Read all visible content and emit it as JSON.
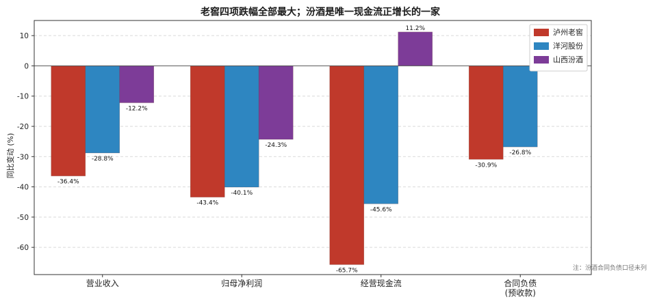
{
  "chart_data": {
    "type": "bar",
    "title": "老窖四项跌幅全部最大；汾酒是唯一现金流正增长的一家",
    "ylabel": "同比变动 (%)",
    "xlabel": "",
    "categories": [
      "营业收入",
      "归母净利润",
      "经营现金流",
      "合同负债\n(预收款)"
    ],
    "series": [
      {
        "name": "泸州老窖",
        "color": "#c0392b",
        "values": [
          -36.4,
          -43.4,
          -65.7,
          -30.9
        ],
        "labels": [
          "-36.4%",
          "-43.4%",
          "-65.7%",
          "-30.9%"
        ]
      },
      {
        "name": "洋河股份",
        "color": "#2e86c1",
        "values": [
          -28.8,
          -40.1,
          -45.6,
          -26.8
        ],
        "labels": [
          "-28.8%",
          "-40.1%",
          "-45.6%",
          "-26.8%"
        ]
      },
      {
        "name": "山西汾酒",
        "color": "#7d3c98",
        "values": [
          -12.2,
          -24.3,
          11.2,
          null
        ],
        "labels": [
          "-12.2%",
          "-24.3%",
          "11.2%",
          ""
        ]
      }
    ],
    "ylim": [
      -69,
      15
    ],
    "yticks": [
      10,
      0,
      -10,
      -20,
      -30,
      -40,
      -50,
      -60
    ],
    "grid": true,
    "legend_position": "top-right",
    "note": "注：汾酒合同负债口径未列"
  }
}
